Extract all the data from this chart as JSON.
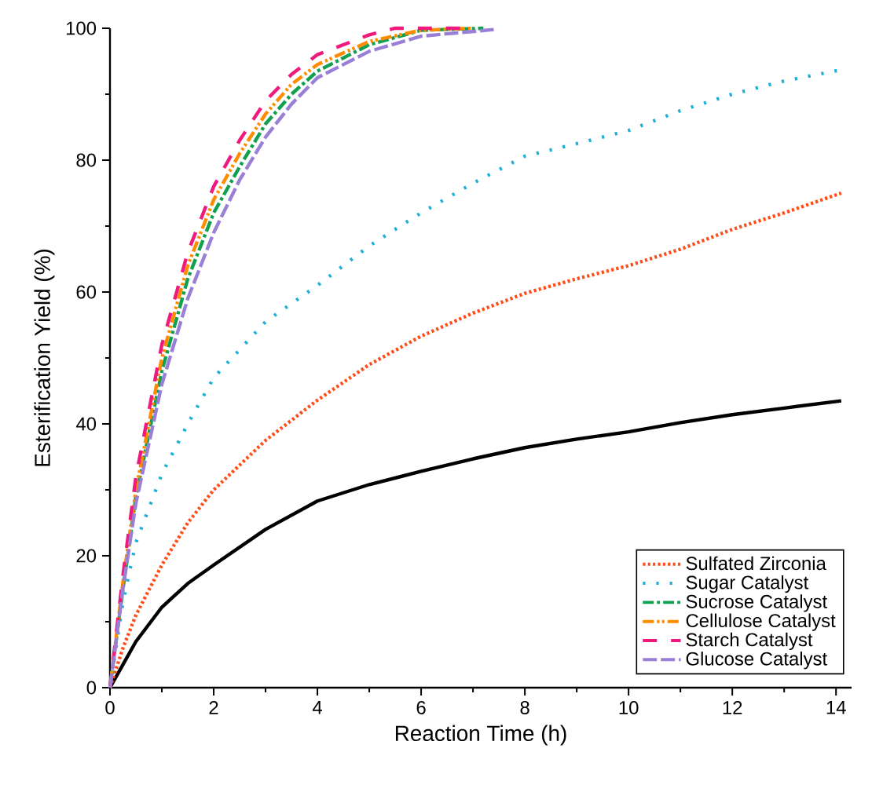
{
  "chart_data": {
    "type": "line",
    "xlabel": "Reaction Time (h)",
    "ylabel": "Esterification Yield (%)",
    "xlim": [
      0,
      14.3
    ],
    "ylim": [
      0,
      100
    ],
    "xticks": [
      0,
      2,
      4,
      6,
      8,
      10,
      12,
      14
    ],
    "yticks": [
      0,
      20,
      40,
      60,
      80,
      100
    ],
    "grid": false,
    "legend": "bottom right",
    "series": [
      {
        "color": "#000000",
        "line_style": "solid",
        "x": [
          0,
          0.25,
          0.5,
          1,
          1.5,
          2,
          3,
          4,
          5,
          6,
          7,
          8,
          9,
          10,
          11,
          12,
          13,
          14.1
        ],
        "values": [
          0,
          3.5,
          7,
          12.2,
          15.8,
          18.6,
          24,
          28.3,
          30.8,
          32.8,
          34.7,
          36.4,
          37.7,
          38.8,
          40.2,
          41.4,
          42.4,
          43.5
        ]
      },
      {
        "name": "Sulfated Zirconia",
        "color": "#ff4d1a",
        "line_style": "dotted",
        "x": [
          0,
          0.25,
          0.5,
          1,
          1.5,
          2,
          3,
          4,
          5,
          6,
          7,
          8,
          9,
          10,
          11,
          12,
          13,
          14.1
        ],
        "values": [
          0,
          6,
          11,
          18.6,
          25,
          30,
          37.5,
          43.6,
          49,
          53.3,
          56.8,
          59.8,
          62,
          64,
          66.5,
          69.5,
          72,
          75
        ]
      },
      {
        "name": "Sugar Catalyst",
        "color": "#1fb0d8",
        "line_style": "loosely dotted",
        "x": [
          0,
          0.25,
          0.5,
          1,
          1.5,
          2,
          3,
          4,
          5,
          6,
          7,
          8,
          9,
          10,
          11,
          12,
          13,
          14.1
        ],
        "values": [
          0,
          13,
          22,
          32.4,
          40,
          47,
          55.5,
          61,
          67,
          72,
          76.5,
          80.6,
          82.5,
          84.5,
          87.5,
          90,
          92,
          93.7
        ]
      },
      {
        "name": "Sucrose Catalyst",
        "color": "#10a050",
        "line_style": "dashdot",
        "x": [
          0,
          0.25,
          0.5,
          1,
          1.5,
          2,
          2.5,
          3,
          3.5,
          4,
          5,
          6,
          7.2
        ],
        "values": [
          0,
          15,
          29,
          48,
          62,
          72,
          79,
          85.5,
          90,
          93.5,
          97.5,
          99.7,
          100
        ]
      },
      {
        "name": "Cellulose Catalyst",
        "color": "#ff8c00",
        "line_style": "dashdotdot",
        "x": [
          0,
          0.25,
          0.5,
          1,
          1.5,
          2,
          2.5,
          3,
          3.5,
          4,
          5,
          6,
          7
        ],
        "values": [
          0,
          16,
          30,
          50,
          64,
          74,
          81,
          87,
          91.5,
          94.5,
          98,
          99.7,
          100
        ]
      },
      {
        "name": "Starch Catalyst",
        "color": "#ee1a7e",
        "line_style": "loosely dashed",
        "x": [
          0,
          0.25,
          0.5,
          1,
          1.5,
          2,
          2.5,
          3,
          3.5,
          4,
          5,
          5.5,
          6.8
        ],
        "values": [
          0,
          17,
          32,
          52,
          66,
          76,
          83,
          89,
          93,
          96,
          99,
          100,
          100
        ]
      },
      {
        "name": "Glucose Catalyst",
        "color": "#9a7fd6",
        "line_style": "dashed",
        "x": [
          0,
          0.25,
          0.5,
          1,
          1.5,
          2,
          2.5,
          3,
          3.5,
          4,
          5,
          6,
          7.4
        ],
        "values": [
          0,
          15,
          28,
          46,
          59,
          69,
          77,
          83.5,
          88.5,
          92.5,
          96.5,
          98.8,
          99.8
        ]
      }
    ]
  }
}
